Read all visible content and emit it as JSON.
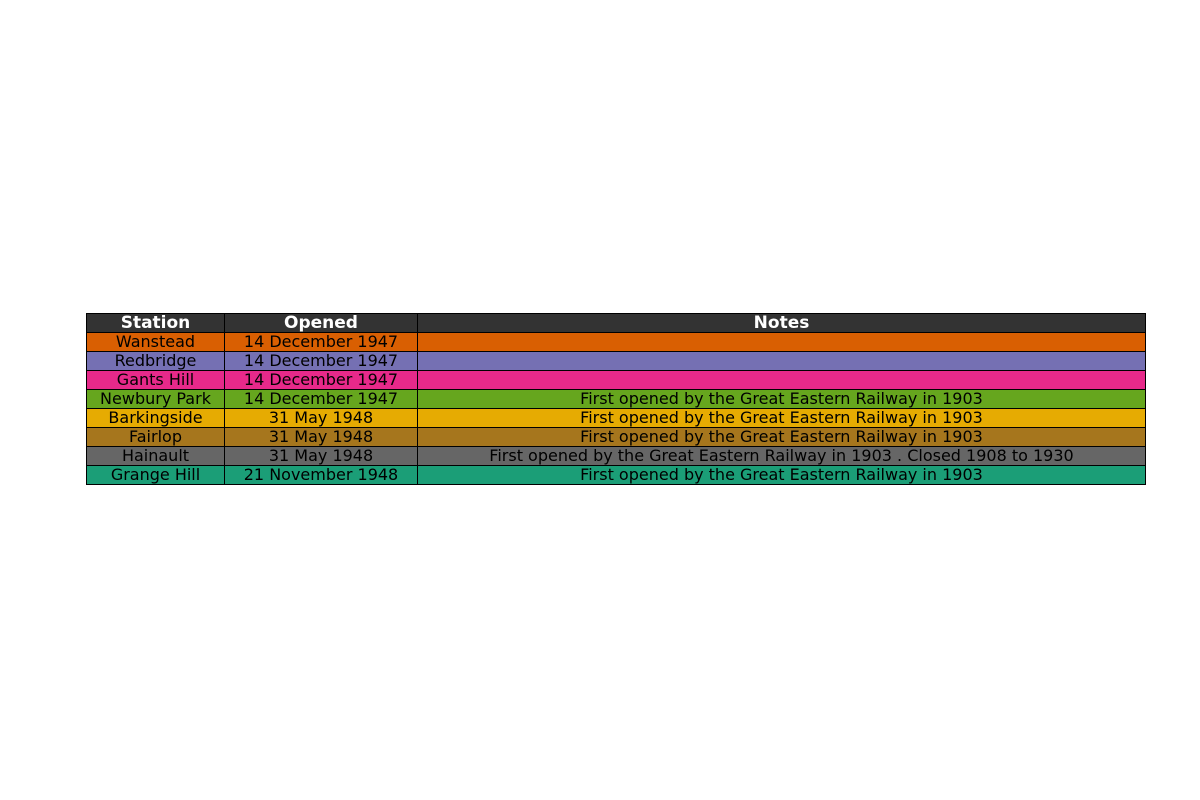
{
  "chart_data": {
    "type": "table",
    "columns": [
      "Station",
      "Opened",
      "Notes"
    ],
    "header_color": "#333333",
    "header_text_color": "#ffffff",
    "rows": [
      {
        "cells": [
          "Wanstead",
          "14 December 1947",
          ""
        ],
        "color": "#d95f02"
      },
      {
        "cells": [
          "Redbridge",
          "14 December 1947",
          ""
        ],
        "color": "#7570b3"
      },
      {
        "cells": [
          "Gants Hill",
          "14 December 1947",
          ""
        ],
        "color": "#e7298a"
      },
      {
        "cells": [
          "Newbury Park",
          "14 December 1947",
          "First opened by the Great Eastern Railway in 1903"
        ],
        "color": "#66a61e"
      },
      {
        "cells": [
          "Barkingside",
          "31 May 1948",
          "First opened by the Great Eastern Railway in 1903"
        ],
        "color": "#e6ab02"
      },
      {
        "cells": [
          "Fairlop",
          "31 May 1948",
          "First opened by the Great Eastern Railway in 1903"
        ],
        "color": "#a6761d"
      },
      {
        "cells": [
          "Hainault",
          "31 May 1948",
          "First opened by the Great Eastern Railway in 1903 . Closed 1908 to 1930"
        ],
        "color": "#666666"
      },
      {
        "cells": [
          "Grange Hill",
          "21 November 1948",
          "First opened by the Great Eastern Railway in 1903"
        ],
        "color": "#1b9e77"
      }
    ]
  }
}
